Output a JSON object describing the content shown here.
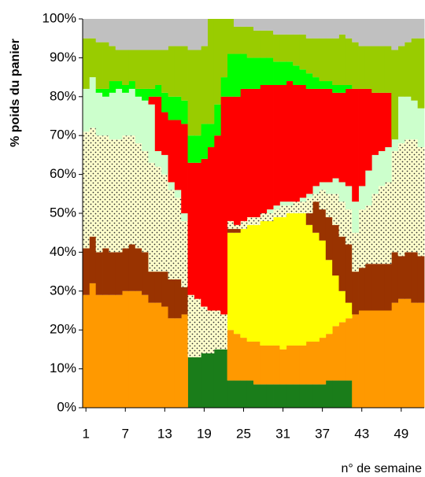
{
  "chart_data": {
    "type": "stacked-bar",
    "y_label": "% poids du panier",
    "x_label": "n° de semaine",
    "categories": [
      "1",
      null,
      null,
      null,
      null,
      null,
      "7",
      null,
      null,
      null,
      null,
      null,
      "13",
      null,
      null,
      null,
      null,
      null,
      "19",
      null,
      null,
      null,
      null,
      null,
      "25",
      null,
      null,
      null,
      null,
      null,
      "31",
      null,
      null,
      null,
      null,
      null,
      "37",
      null,
      null,
      null,
      null,
      null,
      "43",
      null,
      null,
      null,
      null,
      null,
      "49",
      null,
      null,
      null
    ],
    "ylim": [
      0,
      100
    ],
    "yticks": [
      {
        "value": 0,
        "label": "0%"
      },
      {
        "value": 10,
        "label": "10%"
      },
      {
        "value": 20,
        "label": "20%"
      },
      {
        "value": 30,
        "label": "30%"
      },
      {
        "value": 40,
        "label": "40%"
      },
      {
        "value": 50,
        "label": "50%"
      },
      {
        "value": 60,
        "label": "60%"
      },
      {
        "value": 70,
        "label": "70%"
      },
      {
        "value": 80,
        "label": "80%"
      },
      {
        "value": 90,
        "label": "90%"
      },
      {
        "value": 100,
        "label": "100%"
      }
    ],
    "series": [
      {
        "color": "#1a7d1a",
        "values": [
          0,
          0,
          0,
          0,
          0,
          0,
          0,
          0,
          0,
          0,
          0,
          0,
          0,
          0,
          0,
          0,
          13,
          13,
          14,
          14,
          15,
          15,
          7,
          7,
          7,
          7,
          6,
          6,
          6,
          6,
          6,
          6,
          6,
          6,
          6,
          6,
          6,
          7,
          7,
          7,
          7,
          0,
          0,
          0,
          0,
          0,
          0,
          0,
          0,
          0,
          0,
          0
        ]
      },
      {
        "color": "#ff9900",
        "values": [
          29,
          32,
          29,
          29,
          29,
          29,
          30,
          30,
          30,
          29,
          27,
          27,
          26,
          23,
          23,
          24,
          0,
          0,
          0,
          0,
          0,
          0,
          13,
          12,
          11,
          10,
          11,
          10,
          10,
          10,
          9,
          10,
          10,
          10,
          11,
          11,
          12,
          12,
          14,
          15,
          16,
          24,
          25,
          25,
          25,
          25,
          25,
          27,
          28,
          28,
          27,
          27
        ]
      },
      {
        "color": "#ffff00",
        "values": [
          0,
          0,
          0,
          0,
          0,
          0,
          0,
          0,
          0,
          0,
          0,
          0,
          0,
          0,
          0,
          0,
          0,
          0,
          0,
          0,
          0,
          0,
          25,
          26,
          28,
          30,
          30,
          32,
          32,
          33,
          34,
          34,
          34,
          34,
          30,
          28,
          25,
          19,
          13,
          8,
          4,
          0,
          0,
          0,
          0,
          0,
          0,
          0,
          0,
          0,
          0,
          0
        ]
      },
      {
        "color": "#993300",
        "values": [
          12,
          12,
          11,
          12,
          11,
          11,
          11,
          12,
          11,
          11,
          8,
          8,
          9,
          10,
          10,
          7,
          0,
          0,
          0,
          0,
          0,
          0,
          1,
          1,
          0,
          0,
          0,
          0,
          0,
          0,
          0,
          0,
          0,
          0,
          3,
          8,
          8,
          11,
          13,
          14,
          15,
          11,
          11,
          12,
          12,
          12,
          12,
          13,
          11,
          12,
          13,
          12
        ]
      },
      {
        "color": "#ffffcc",
        "pattern": "dots",
        "values": [
          30,
          28,
          30,
          29,
          29,
          29,
          29,
          28,
          27,
          26,
          28,
          27,
          25,
          23,
          21,
          17,
          16,
          15,
          12,
          11,
          10,
          9,
          2,
          1,
          2,
          2,
          2,
          2,
          2,
          2,
          3,
          2,
          3,
          3,
          4,
          2,
          5,
          6,
          8,
          9,
          9,
          10,
          15,
          15,
          18,
          20,
          21,
          26,
          29,
          29,
          29,
          28
        ]
      },
      {
        "color": "#ccffcc",
        "values": [
          11,
          13,
          11,
          10,
          12,
          13,
          11,
          12,
          12,
          13,
          15,
          4,
          5,
          2,
          2,
          2,
          0,
          0,
          0,
          0,
          0,
          0,
          0,
          0,
          0,
          0,
          0,
          0,
          1,
          1,
          1,
          1,
          0,
          1,
          1,
          2,
          2,
          3,
          4,
          5,
          6,
          8,
          6,
          9,
          10,
          9,
          9,
          3,
          12,
          11,
          10,
          10
        ]
      },
      {
        "color": "#ff0000",
        "values": [
          0,
          0,
          0,
          0,
          0,
          0,
          0,
          0,
          0,
          0,
          2,
          14,
          11,
          16,
          18,
          23,
          34,
          35,
          38,
          42,
          45,
          56,
          32,
          33,
          34,
          33,
          33,
          33,
          32,
          31,
          30,
          31,
          30,
          29,
          27,
          25,
          24,
          24,
          22,
          23,
          25,
          29,
          25,
          21,
          16,
          15,
          14,
          0,
          0,
          0,
          0,
          0
        ]
      },
      {
        "color": "#00ff00",
        "values": [
          0,
          0,
          1,
          2,
          3,
          2,
          2,
          2,
          2,
          3,
          2,
          3,
          5,
          6,
          6,
          6,
          7,
          7,
          9,
          6,
          8,
          5,
          11,
          11,
          9,
          8,
          8,
          7,
          7,
          6,
          6,
          5,
          5,
          4,
          4,
          3,
          2,
          2,
          2,
          2,
          1,
          0,
          0,
          0,
          0,
          0,
          0,
          0,
          0,
          0,
          0,
          0
        ]
      },
      {
        "color": "#99cc00",
        "values": [
          13,
          10,
          12,
          12,
          9,
          8,
          9,
          8,
          10,
          10,
          10,
          9,
          11,
          13,
          13,
          14,
          22,
          22,
          20,
          27,
          22,
          15,
          9,
          7,
          7,
          8,
          7,
          7,
          7,
          7,
          7,
          7,
          8,
          9,
          9,
          10,
          11,
          11,
          12,
          13,
          12,
          12,
          11,
          11,
          12,
          12,
          12,
          23,
          13,
          14,
          16,
          18
        ]
      },
      {
        "color": "#c0c0c0",
        "values": [
          5,
          5,
          6,
          6,
          7,
          8,
          8,
          8,
          8,
          8,
          8,
          8,
          8,
          7,
          7,
          7,
          8,
          8,
          7,
          0,
          0,
          0,
          0,
          2,
          2,
          2,
          3,
          3,
          3,
          4,
          4,
          4,
          4,
          4,
          5,
          5,
          5,
          5,
          5,
          4,
          5,
          6,
          7,
          7,
          7,
          7,
          7,
          8,
          7,
          6,
          5,
          5
        ]
      }
    ]
  }
}
